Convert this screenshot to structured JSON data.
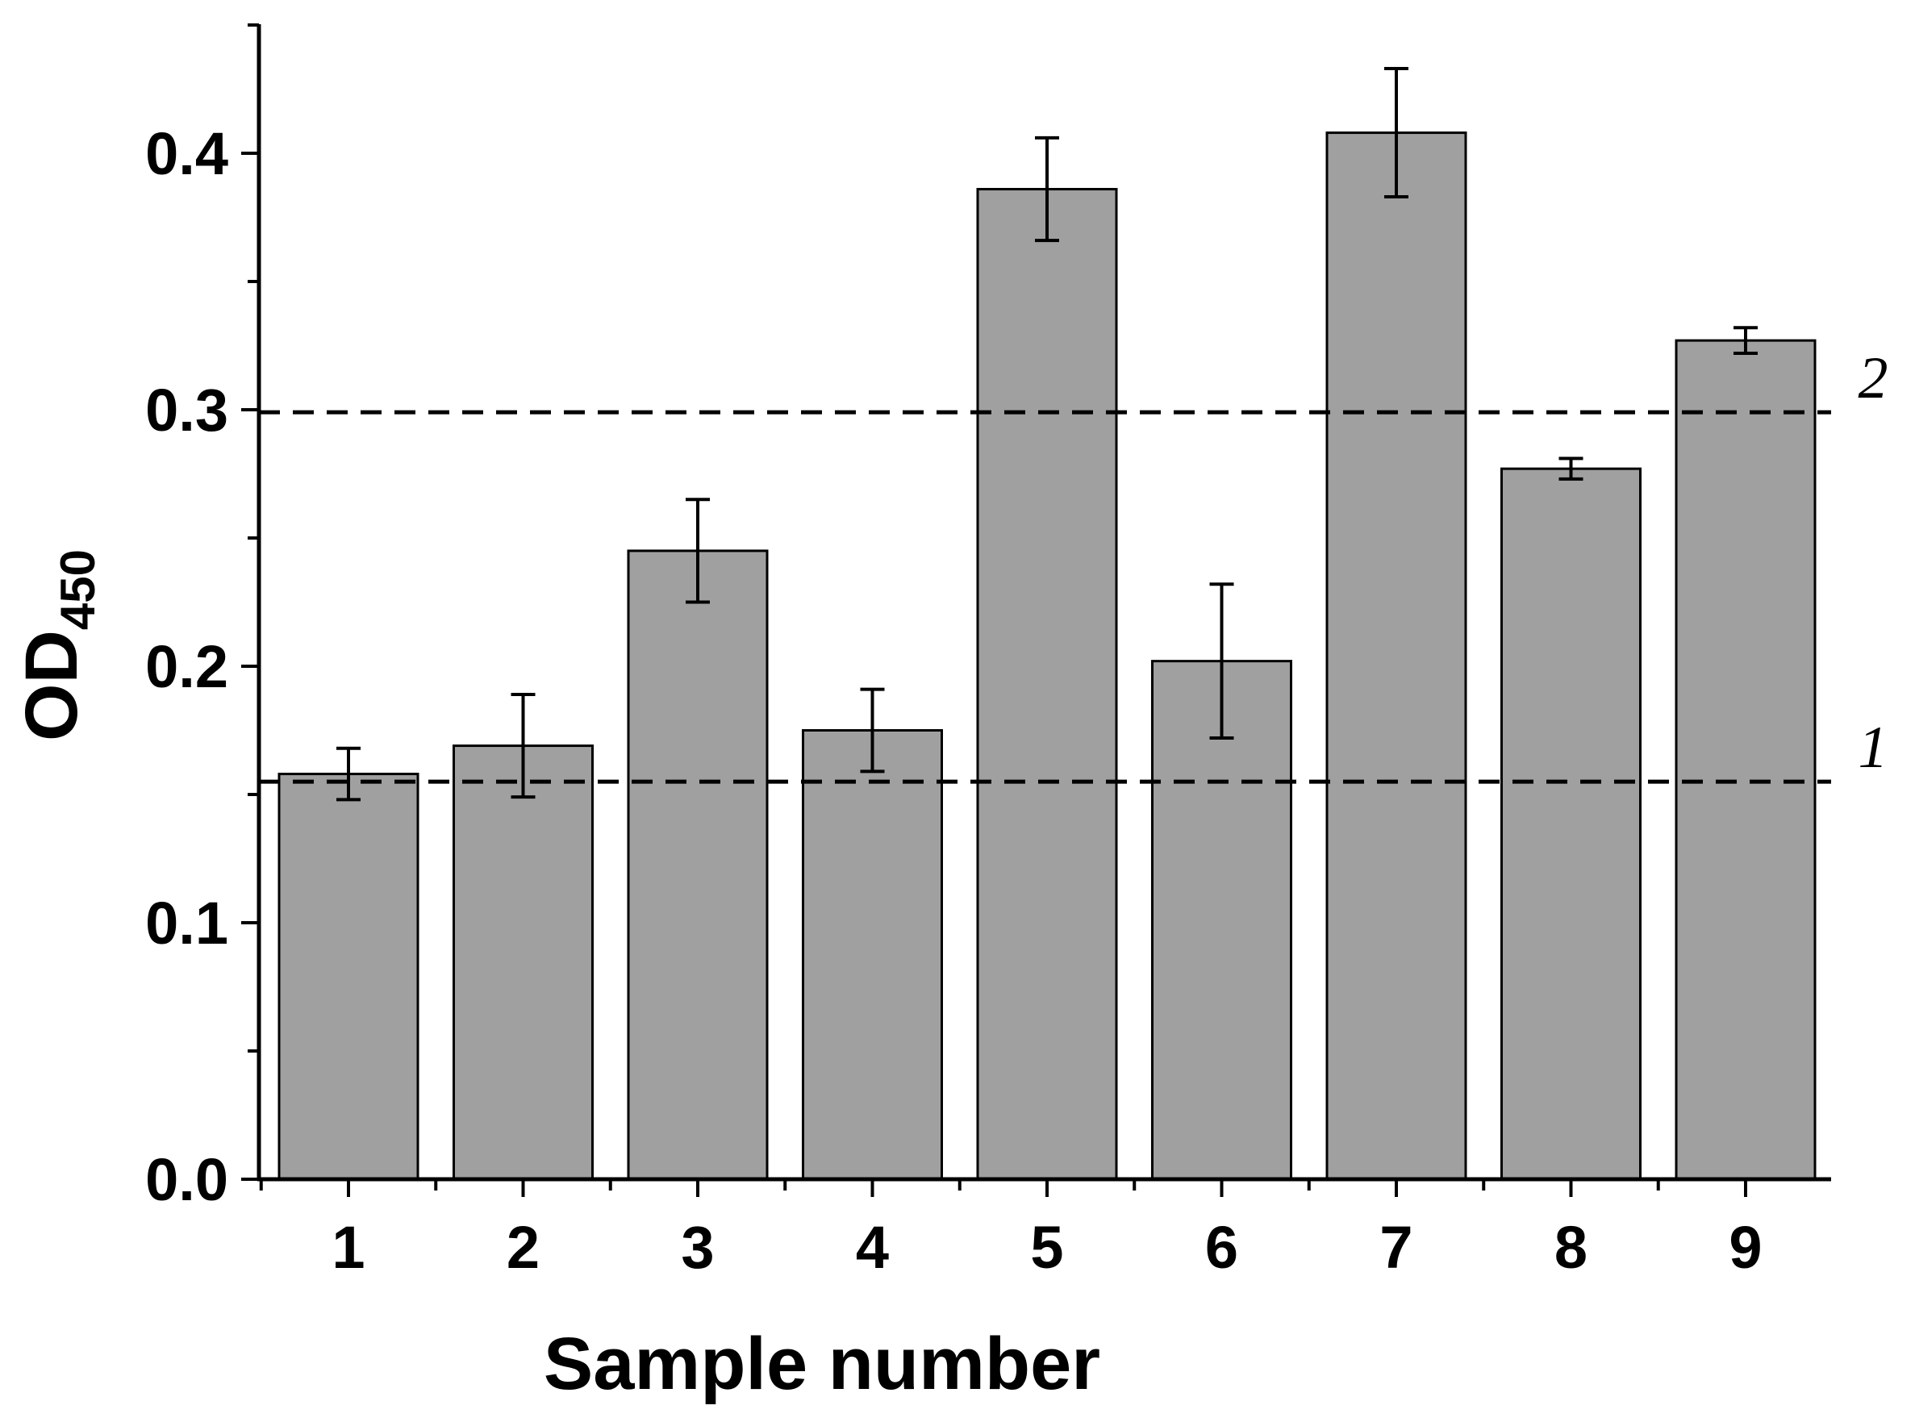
{
  "chart_data": {
    "type": "bar",
    "categories": [
      "1",
      "2",
      "3",
      "4",
      "5",
      "6",
      "7",
      "8",
      "9"
    ],
    "values": [
      0.158,
      0.169,
      0.245,
      0.175,
      0.386,
      0.202,
      0.408,
      0.277,
      0.327
    ],
    "errors": [
      0.01,
      0.02,
      0.02,
      0.016,
      0.02,
      0.03,
      0.025,
      0.004,
      0.005
    ],
    "title": "",
    "xlabel": "Sample number",
    "ylabel": "OD",
    "ylabel_subscript": "450",
    "ylim": [
      0,
      0.45
    ],
    "yticks": [
      0.0,
      0.1,
      0.2,
      0.3,
      0.4
    ],
    "ytick_labels": [
      "0.0",
      "0.1",
      "0.2",
      "0.3",
      "0.4"
    ],
    "grid": false,
    "bar_color": "#a0a0a0",
    "bar_edge_color": "#000000",
    "reference_lines": [
      {
        "label": "1",
        "value": 0.155,
        "style": "dashed"
      },
      {
        "label": "2",
        "value": 0.299,
        "style": "dashed"
      }
    ]
  }
}
